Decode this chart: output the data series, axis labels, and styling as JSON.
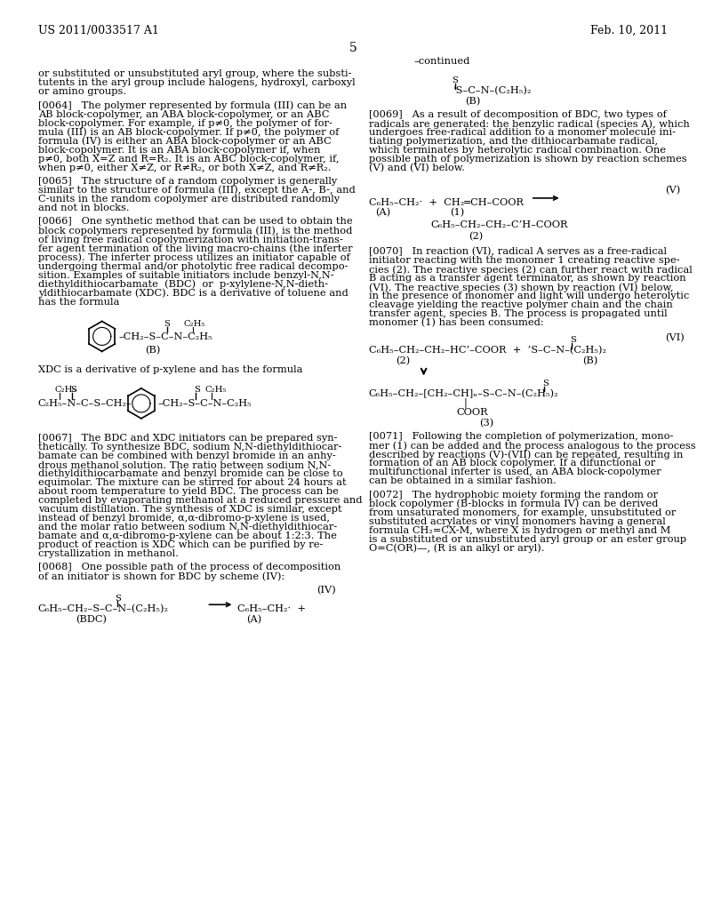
{
  "bg_color": "#ffffff",
  "header_left": "US 2011/0033517 A1",
  "header_right": "Feb. 10, 2011",
  "page_number": "5"
}
